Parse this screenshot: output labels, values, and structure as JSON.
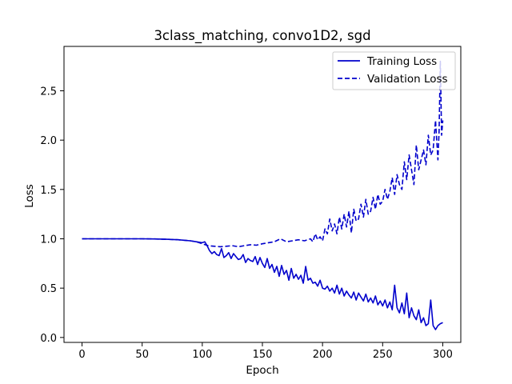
{
  "chart_data": {
    "type": "line",
    "title": "3class_matching, convo1D2, sgd",
    "xlabel": "Epoch",
    "ylabel": "Loss",
    "xlim": [
      -15,
      315
    ],
    "ylim": [
      -0.05,
      2.95
    ],
    "xticks": [
      0,
      50,
      100,
      150,
      200,
      250,
      300
    ],
    "yticks": [
      0.0,
      0.5,
      1.0,
      1.5,
      2.0,
      2.5
    ],
    "grid": false,
    "legend_position": "top-right",
    "line_color": "#0000cc",
    "series": [
      {
        "name": "Training Loss",
        "style": "solid",
        "x": [
          0,
          10,
          20,
          30,
          40,
          50,
          60,
          70,
          80,
          90,
          95,
          100,
          102,
          104,
          106,
          108,
          110,
          112,
          114,
          116,
          118,
          120,
          122,
          124,
          126,
          128,
          130,
          132,
          134,
          136,
          138,
          140,
          142,
          144,
          146,
          148,
          150,
          152,
          154,
          156,
          158,
          160,
          162,
          164,
          166,
          168,
          170,
          172,
          174,
          176,
          178,
          180,
          182,
          184,
          186,
          188,
          190,
          192,
          194,
          196,
          198,
          200,
          202,
          204,
          206,
          208,
          210,
          212,
          214,
          216,
          218,
          220,
          222,
          224,
          226,
          228,
          230,
          232,
          234,
          236,
          238,
          240,
          242,
          244,
          246,
          248,
          250,
          252,
          254,
          256,
          258,
          260,
          262,
          264,
          266,
          268,
          270,
          272,
          274,
          276,
          278,
          280,
          282,
          284,
          286,
          288,
          290,
          292,
          294,
          296,
          298,
          300
        ],
        "y": [
          1.0,
          1.0,
          1.0,
          1.0,
          1.0,
          1.0,
          0.998,
          0.995,
          0.99,
          0.98,
          0.97,
          0.96,
          0.97,
          0.93,
          0.88,
          0.85,
          0.87,
          0.84,
          0.83,
          0.9,
          0.81,
          0.83,
          0.86,
          0.8,
          0.85,
          0.82,
          0.79,
          0.8,
          0.84,
          0.76,
          0.8,
          0.78,
          0.77,
          0.82,
          0.74,
          0.81,
          0.75,
          0.71,
          0.8,
          0.7,
          0.74,
          0.66,
          0.72,
          0.62,
          0.73,
          0.64,
          0.68,
          0.58,
          0.7,
          0.6,
          0.64,
          0.59,
          0.63,
          0.55,
          0.72,
          0.58,
          0.6,
          0.55,
          0.56,
          0.52,
          0.58,
          0.5,
          0.49,
          0.52,
          0.47,
          0.5,
          0.45,
          0.53,
          0.44,
          0.5,
          0.42,
          0.47,
          0.43,
          0.4,
          0.46,
          0.38,
          0.45,
          0.41,
          0.37,
          0.44,
          0.36,
          0.4,
          0.35,
          0.42,
          0.33,
          0.37,
          0.32,
          0.38,
          0.3,
          0.36,
          0.28,
          0.53,
          0.3,
          0.25,
          0.35,
          0.24,
          0.45,
          0.2,
          0.3,
          0.22,
          0.18,
          0.28,
          0.15,
          0.2,
          0.12,
          0.14,
          0.38,
          0.12,
          0.08,
          0.12,
          0.14,
          0.15
        ]
      },
      {
        "name": "Validation Loss",
        "style": "dashed",
        "x": [
          0,
          10,
          20,
          30,
          40,
          50,
          60,
          70,
          80,
          90,
          95,
          100,
          105,
          110,
          115,
          120,
          125,
          130,
          135,
          140,
          145,
          150,
          155,
          160,
          165,
          170,
          175,
          180,
          185,
          190,
          192,
          194,
          196,
          198,
          200,
          202,
          204,
          206,
          208,
          210,
          212,
          214,
          216,
          218,
          220,
          222,
          224,
          226,
          228,
          230,
          232,
          234,
          236,
          238,
          240,
          242,
          244,
          246,
          248,
          250,
          252,
          254,
          256,
          258,
          260,
          262,
          264,
          266,
          268,
          270,
          272,
          274,
          276,
          278,
          280,
          282,
          284,
          286,
          288,
          290,
          292,
          294,
          296,
          297,
          298,
          299,
          300
        ],
        "y": [
          1.0,
          1.0,
          1.0,
          1.0,
          1.0,
          1.0,
          0.998,
          0.995,
          0.99,
          0.98,
          0.97,
          0.95,
          0.93,
          0.925,
          0.92,
          0.925,
          0.93,
          0.92,
          0.93,
          0.94,
          0.935,
          0.95,
          0.96,
          0.97,
          1.0,
          0.97,
          0.98,
          0.99,
          0.98,
          1.0,
          0.97,
          1.05,
          0.99,
          1.02,
          0.98,
          1.1,
          1.05,
          1.2,
          1.08,
          1.15,
          1.05,
          1.22,
          1.1,
          1.25,
          1.12,
          1.28,
          1.06,
          1.3,
          1.18,
          1.2,
          1.35,
          1.22,
          1.4,
          1.25,
          1.28,
          1.42,
          1.3,
          1.45,
          1.35,
          1.38,
          1.5,
          1.4,
          1.48,
          1.62,
          1.45,
          1.65,
          1.55,
          1.5,
          1.78,
          1.6,
          1.85,
          1.7,
          1.55,
          1.95,
          1.7,
          1.8,
          1.9,
          1.75,
          2.05,
          1.85,
          1.9,
          2.2,
          1.8,
          2.1,
          2.8,
          2.05,
          2.2
        ]
      }
    ]
  }
}
